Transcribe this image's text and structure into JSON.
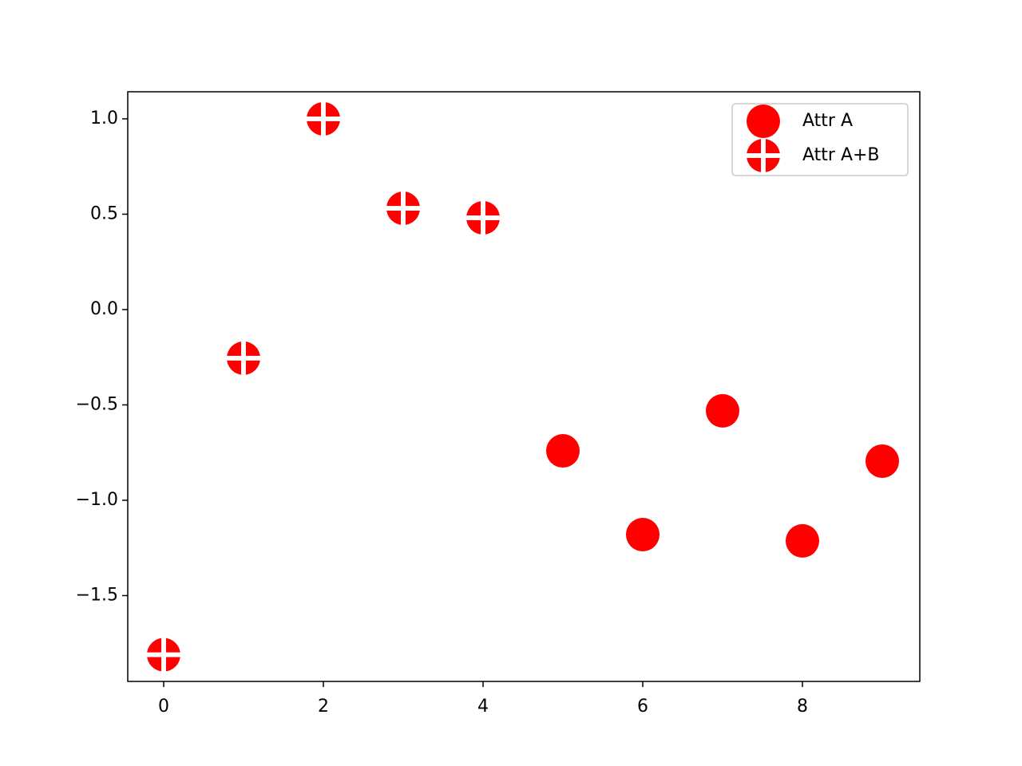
{
  "chart_data": {
    "type": "scatter",
    "series": [
      {
        "name": "Attr A",
        "color": "#ff0000",
        "marker": "circle",
        "x": [
          5,
          6,
          7,
          8,
          9
        ],
        "values": [
          -0.741,
          -1.18,
          -0.531,
          -1.213,
          -0.795
        ]
      },
      {
        "name": "Attr A+B",
        "color": "#ff0000",
        "marker": "circle-cross",
        "x": [
          0,
          1,
          2,
          3,
          4
        ],
        "values": [
          -1.81,
          -0.255,
          1.0,
          0.531,
          0.481
        ]
      }
    ],
    "xlim": [
      -0.45,
      9.47
    ],
    "xticks": [
      0,
      2,
      4,
      6,
      8
    ],
    "ylim": [
      -1.95,
      1.142
    ],
    "yticks": [
      {
        "value": -1.5,
        "label": "−1.5"
      },
      {
        "value": -1.0,
        "label": "−1.0"
      },
      {
        "value": -0.5,
        "label": "−0.5"
      },
      {
        "value": 0.0,
        "label": "0.0"
      },
      0.5,
      {
        "value": 1.0,
        "label": "1.0"
      }
    ],
    "legend": "upper right"
  }
}
